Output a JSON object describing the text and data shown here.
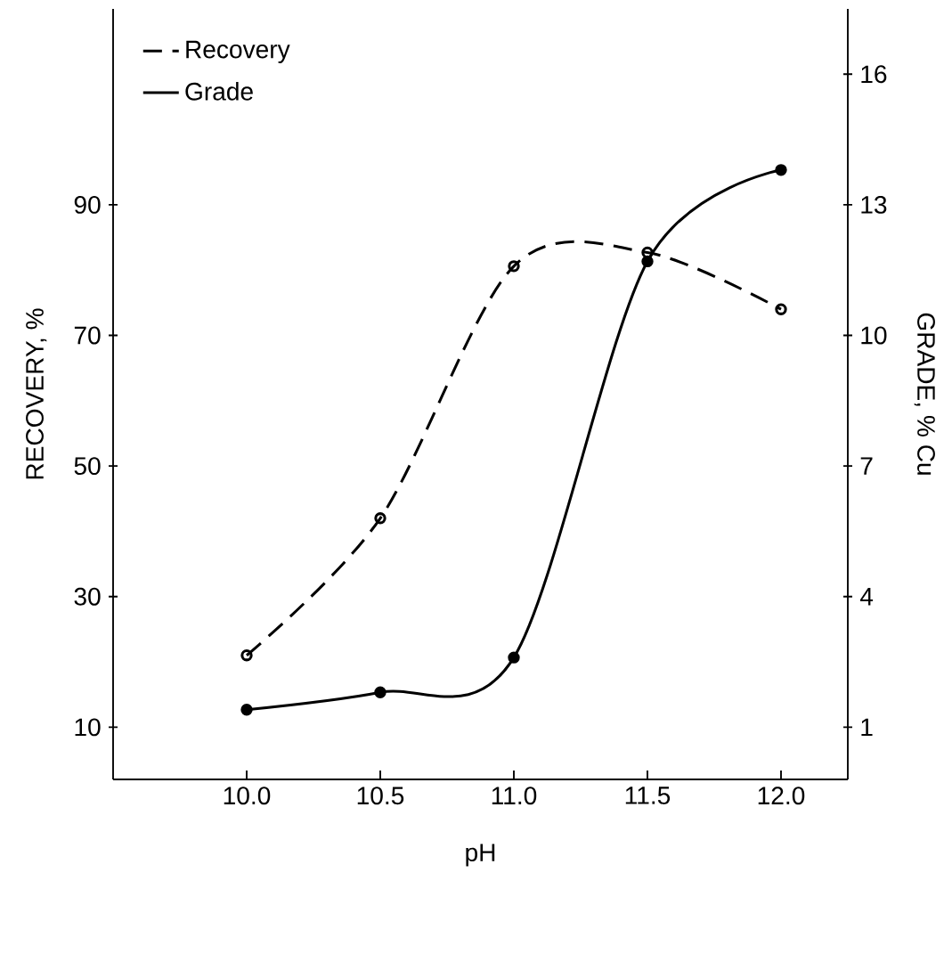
{
  "chart_data": {
    "type": "line",
    "xlabel": "pH",
    "ylabel": "RECOVERY, %",
    "y2label": "GRADE, % Cu",
    "x": [
      10.0,
      10.5,
      11.0,
      11.5,
      12.0
    ],
    "series": [
      {
        "name": "Recovery",
        "color": "#000000",
        "line_style": "dashed",
        "values": [
          21,
          42,
          80.6,
          82.7,
          74
        ]
      },
      {
        "name": "Grade",
        "color": "#000000",
        "line_style": "solid",
        "axis": "y2",
        "values": [
          1.4,
          1.8,
          2.6,
          11.7,
          13.8
        ]
      }
    ],
    "xlim": [
      9.5,
      12.25
    ],
    "xticks": [
      {
        "value": 10.0,
        "label": "10.0"
      },
      {
        "value": 10.5,
        "label": "10.5"
      },
      {
        "value": 11.0,
        "label": "11.0"
      },
      {
        "value": 11.5,
        "label": "11.5"
      },
      {
        "value": 12.0,
        "label": "12.0"
      }
    ],
    "ylim": [
      2,
      120
    ],
    "yticks": [
      10,
      30,
      50,
      70,
      90
    ],
    "y2lim": [
      -0.2,
      17.5
    ],
    "y2ticks": [
      1,
      4,
      7,
      10,
      13,
      16
    ],
    "marker": "circle",
    "legend": "top left"
  }
}
